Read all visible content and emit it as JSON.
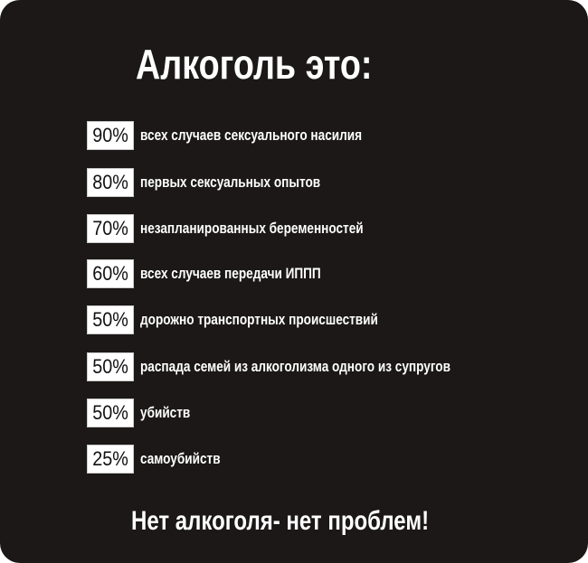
{
  "title": "Алкоголь это:",
  "items": [
    {
      "percent": "90%",
      "text": "всех случаев  сексуального насилия"
    },
    {
      "percent": "80%",
      "text": "первых сексуальных опытов"
    },
    {
      "percent": "70%",
      "text": "незапланированных  беременностей"
    },
    {
      "percent": "60%",
      "text": "всех случаев передачи ИППП"
    },
    {
      "percent": "50%",
      "text": "дорожно транспортных  происшествий"
    },
    {
      "percent": "50%",
      "text": "распада семей из алкоголизма одного из супругов"
    },
    {
      "percent": "50%",
      "text": "убийств"
    },
    {
      "percent": "25%",
      "text": "самоубийств"
    }
  ],
  "footer": "Нет алкоголя- нет проблем!",
  "colors": {
    "background": "#1b1817",
    "text": "#ffffff",
    "badge": "#ffffff"
  }
}
